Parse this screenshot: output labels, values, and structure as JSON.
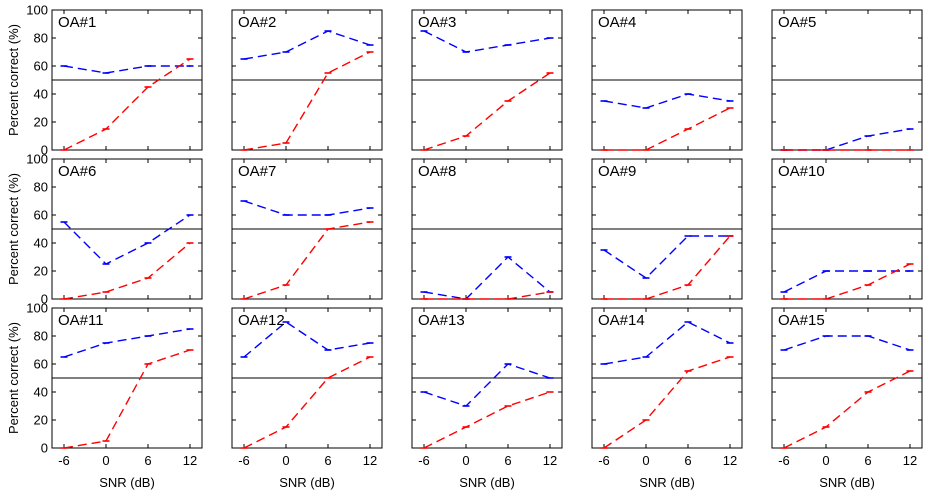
{
  "chart_data": {
    "type": "line",
    "xlabel": "SNR (dB)",
    "ylabel": "Percent correct (%)",
    "x": [
      -6,
      0,
      6,
      12
    ],
    "xticks": [
      "-6",
      "0",
      "6",
      "12"
    ],
    "yticks": [
      "0",
      "20",
      "40",
      "60",
      "80",
      "100"
    ],
    "ylim": [
      0,
      100
    ],
    "reference_line": 50,
    "colors": {
      "series_1": "#0000ff",
      "series_2": "#ff0000",
      "reference": "#000000"
    },
    "panels": [
      {
        "label": "OA#1",
        "series": [
          {
            "values": [
              60,
              55,
              60,
              60
            ]
          },
          {
            "values": [
              0,
              15,
              45,
              65
            ]
          }
        ]
      },
      {
        "label": "OA#2",
        "series": [
          {
            "values": [
              65,
              70,
              85,
              75
            ]
          },
          {
            "values": [
              0,
              5,
              55,
              70
            ]
          }
        ]
      },
      {
        "label": "OA#3",
        "series": [
          {
            "values": [
              85,
              70,
              75,
              80
            ]
          },
          {
            "values": [
              0,
              10,
              35,
              55
            ]
          }
        ]
      },
      {
        "label": "OA#4",
        "series": [
          {
            "values": [
              35,
              30,
              40,
              35
            ]
          },
          {
            "values": [
              0,
              0,
              15,
              30
            ]
          }
        ]
      },
      {
        "label": "OA#5",
        "series": [
          {
            "values": [
              0,
              0,
              10,
              15
            ]
          },
          {
            "values": [
              0,
              0,
              0,
              0
            ]
          }
        ]
      },
      {
        "label": "OA#6",
        "series": [
          {
            "values": [
              55,
              25,
              40,
              60
            ]
          },
          {
            "values": [
              0,
              5,
              15,
              40
            ]
          }
        ]
      },
      {
        "label": "OA#7",
        "series": [
          {
            "values": [
              70,
              60,
              60,
              65
            ]
          },
          {
            "values": [
              0,
              10,
              50,
              55
            ]
          }
        ]
      },
      {
        "label": "OA#8",
        "series": [
          {
            "values": [
              5,
              0,
              30,
              5
            ]
          },
          {
            "values": [
              0,
              0,
              0,
              5
            ]
          }
        ]
      },
      {
        "label": "OA#9",
        "series": [
          {
            "values": [
              35,
              15,
              45,
              45
            ]
          },
          {
            "values": [
              0,
              0,
              10,
              45
            ]
          }
        ]
      },
      {
        "label": "OA#10",
        "series": [
          {
            "values": [
              5,
              20,
              20,
              20
            ]
          },
          {
            "values": [
              0,
              0,
              10,
              25
            ]
          }
        ]
      },
      {
        "label": "OA#11",
        "series": [
          {
            "values": [
              65,
              75,
              80,
              85
            ]
          },
          {
            "values": [
              0,
              5,
              60,
              70
            ]
          }
        ]
      },
      {
        "label": "OA#12",
        "series": [
          {
            "values": [
              65,
              90,
              70,
              75
            ]
          },
          {
            "values": [
              0,
              15,
              50,
              65
            ]
          }
        ]
      },
      {
        "label": "OA#13",
        "series": [
          {
            "values": [
              40,
              30,
              60,
              50
            ]
          },
          {
            "values": [
              0,
              15,
              30,
              40
            ]
          }
        ]
      },
      {
        "label": "OA#14",
        "series": [
          {
            "values": [
              60,
              65,
              90,
              75
            ]
          },
          {
            "values": [
              0,
              20,
              55,
              65
            ]
          }
        ]
      },
      {
        "label": "OA#15",
        "series": [
          {
            "values": [
              70,
              80,
              80,
              70
            ]
          },
          {
            "values": [
              0,
              15,
              40,
              55
            ]
          }
        ]
      }
    ]
  }
}
